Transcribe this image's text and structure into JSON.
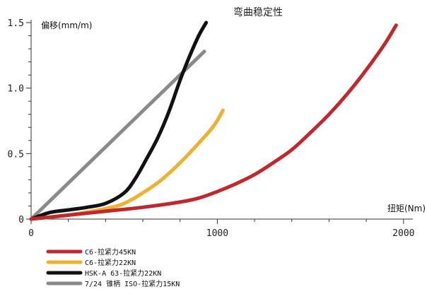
{
  "chart_data": {
    "type": "line",
    "title": "弯曲稳定性",
    "xlabel": "扭矩(Nm)",
    "ylabel": "偏移(mm/m)",
    "xlim": [
      0,
      2050
    ],
    "ylim": [
      0,
      1.5
    ],
    "x_ticks": [
      0,
      1000,
      2000
    ],
    "x_tick_labels": [
      "0",
      "1000",
      "2000"
    ],
    "y_ticks": [
      0,
      0.5,
      1.0,
      1.5
    ],
    "y_tick_labels": [
      "0",
      "0.5",
      "1.0",
      "1.5"
    ],
    "x_minor_step": 200,
    "y_minor_step": 0.1,
    "grid": false,
    "legend_position": "bottom-left",
    "series": [
      {
        "name": "C6-拉紧力45KN",
        "color": "#c0282d",
        "x": [
          0,
          200,
          400,
          600,
          800,
          900,
          1000,
          1100,
          1200,
          1300,
          1400,
          1500,
          1600,
          1700,
          1800,
          1900,
          1960
        ],
        "y": [
          0,
          0.03,
          0.06,
          0.09,
          0.13,
          0.16,
          0.21,
          0.27,
          0.34,
          0.43,
          0.53,
          0.66,
          0.8,
          0.96,
          1.14,
          1.34,
          1.48
        ]
      },
      {
        "name": "C6-拉紧力22KN",
        "color": "#f0b030",
        "x": [
          0,
          200,
          400,
          500,
          600,
          700,
          800,
          900,
          980,
          1030
        ],
        "y": [
          0,
          0.03,
          0.08,
          0.12,
          0.2,
          0.3,
          0.43,
          0.58,
          0.71,
          0.83
        ]
      },
      {
        "name": "HSK-A 63-拉紧力22KN",
        "color": "#111111",
        "x": [
          0,
          100,
          200,
          300,
          400,
          500,
          560,
          620,
          680,
          740,
          800,
          850,
          900,
          940
        ],
        "y": [
          0,
          0.05,
          0.07,
          0.09,
          0.12,
          0.2,
          0.31,
          0.46,
          0.62,
          0.82,
          1.06,
          1.24,
          1.4,
          1.5
        ]
      },
      {
        "name": "7/24 锥柄 ISO-拉紧力15KN",
        "color": "#8a8a8a",
        "x": [
          0,
          930
        ],
        "y": [
          0,
          1.28
        ]
      }
    ]
  }
}
